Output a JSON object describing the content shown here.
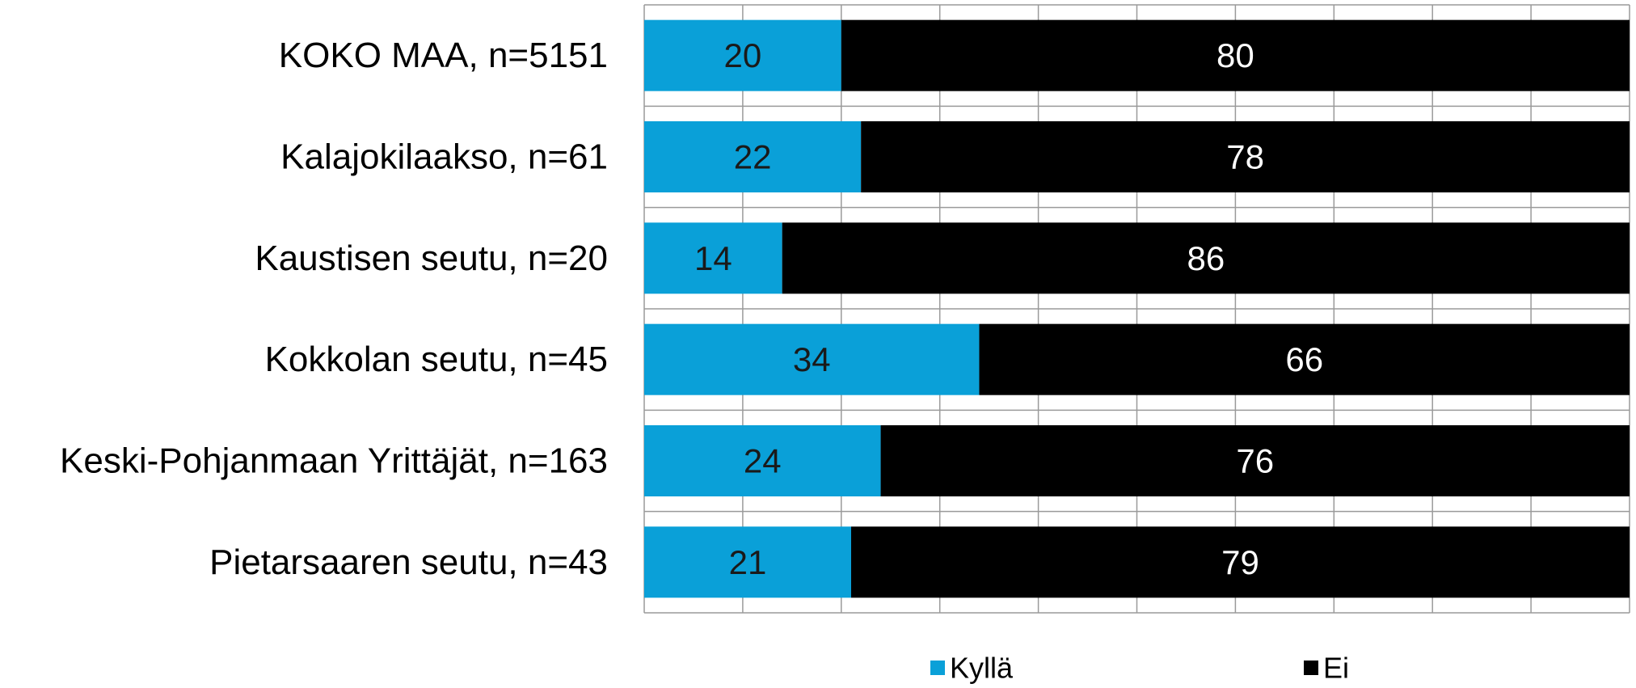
{
  "chart_data": {
    "type": "bar",
    "orientation": "horizontal",
    "stacked": true,
    "categories": [
      "KOKO MAA, n=5151",
      "Kalajokilaakso, n=61",
      "Kaustisen seutu, n=20",
      "Kokkolan seutu, n=45",
      "Keski-Pohjanmaan Yrittäjät, n=163",
      "Pietarsaaren seutu, n=43"
    ],
    "series": [
      {
        "name": "Kyllä",
        "values": [
          20,
          22,
          14,
          34,
          24,
          21
        ],
        "color": "#0aa0d8",
        "label_color": "#1a1a1a"
      },
      {
        "name": "Ei",
        "values": [
          80,
          78,
          86,
          66,
          76,
          79
        ],
        "color": "#000000",
        "label_color": "#ffffff"
      }
    ],
    "xlim": [
      0,
      100
    ],
    "grid": true,
    "x_tick_labels_shown": false,
    "legend_position": "bottom"
  }
}
